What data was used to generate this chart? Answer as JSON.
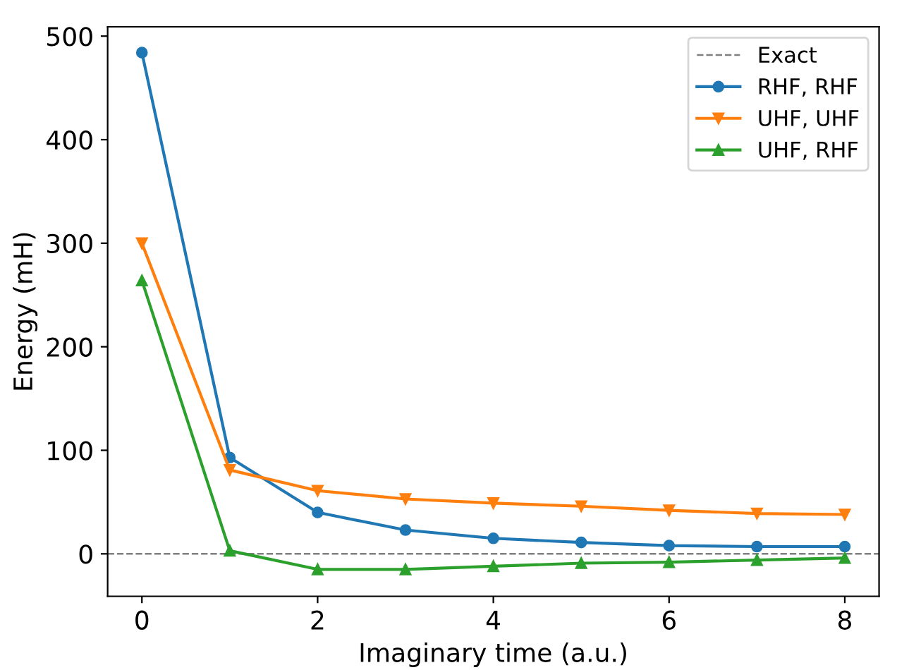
{
  "chart_data": {
    "type": "line",
    "xlabel": "Imaginary time (a.u.)",
    "ylabel": "Energy (mH)",
    "x": [
      0,
      1,
      2,
      3,
      4,
      5,
      6,
      7,
      8
    ],
    "series": [
      {
        "name": "RHF, RHF",
        "color": "#1f77b4",
        "marker": "circle",
        "values": [
          484,
          93,
          40,
          23,
          15,
          11,
          8,
          7,
          7
        ]
      },
      {
        "name": "UHF, UHF",
        "color": "#ff7f0e",
        "marker": "triangle_down",
        "values": [
          300,
          81,
          61,
          53,
          49,
          46,
          42,
          39,
          38
        ]
      },
      {
        "name": "UHF, RHF",
        "color": "#2ca02c",
        "marker": "triangle",
        "values": [
          264,
          3,
          -15,
          -15,
          -12,
          -9,
          -8,
          -6,
          -4
        ]
      }
    ],
    "ref_lines": [
      {
        "axis": "y",
        "value": 0,
        "label": "Exact",
        "color": "#808080",
        "line_style": "dashed"
      }
    ],
    "xlim": [
      -0.39,
      8.39
    ],
    "ylim": [
      -41,
      509
    ],
    "xticks": [
      0,
      2,
      4,
      6,
      8
    ],
    "yticks": [
      0,
      100,
      200,
      300,
      400,
      500
    ],
    "grid": false,
    "legend": "top right"
  }
}
